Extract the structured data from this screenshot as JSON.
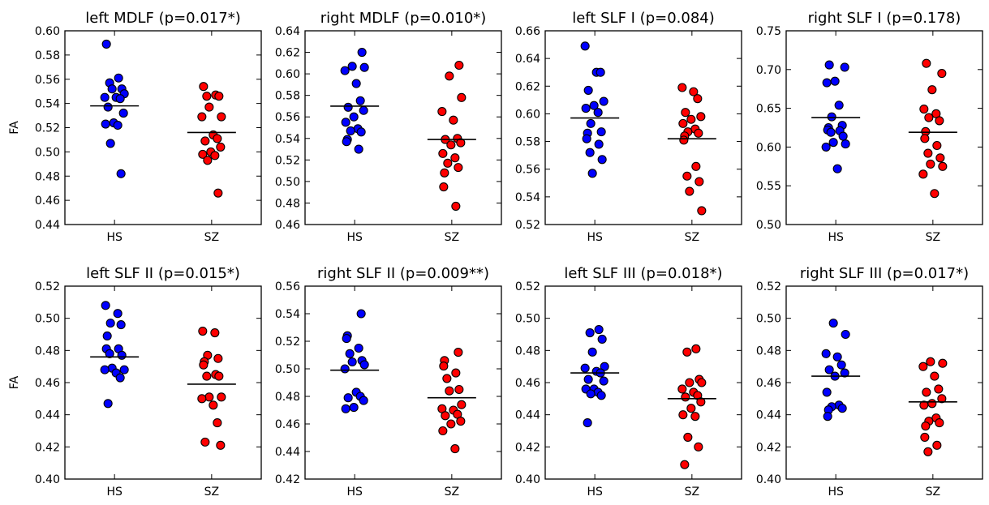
{
  "figure": {
    "ylabel_top": "FA",
    "ylabel_bottom": "FA"
  },
  "style": {
    "hs_color": "#0000ff",
    "sz_color": "#ff0000",
    "edge_color": "#000000",
    "mean_line_color": "#000000",
    "background": "#ffffff"
  },
  "chart_data": [
    {
      "type": "scatter",
      "title": "left MDLF (p=0.017*)",
      "ylabel": "FA",
      "categories": [
        "HS",
        "SZ"
      ],
      "ylim": [
        0.44,
        0.6
      ],
      "yticks": [
        "0.44",
        "0.46",
        "0.48",
        "0.50",
        "0.52",
        "0.54",
        "0.56",
        "0.58",
        "0.60"
      ],
      "grid": false,
      "legend": "none",
      "means": [
        0.538,
        0.516
      ],
      "series": [
        {
          "category": "HS",
          "values": [
            0.589,
            0.561,
            0.557,
            0.552,
            0.552,
            0.548,
            0.545,
            0.545,
            0.544,
            0.537,
            0.532,
            0.524,
            0.523,
            0.522,
            0.507,
            0.482
          ]
        },
        {
          "category": "SZ",
          "values": [
            0.554,
            0.547,
            0.546,
            0.546,
            0.537,
            0.529,
            0.529,
            0.514,
            0.511,
            0.509,
            0.504,
            0.5,
            0.498,
            0.497,
            0.493,
            0.466
          ]
        }
      ]
    },
    {
      "type": "scatter",
      "title": "right MDLF (p=0.010*)",
      "ylabel": "",
      "categories": [
        "HS",
        "SZ"
      ],
      "ylim": [
        0.46,
        0.64
      ],
      "yticks": [
        "0.46",
        "0.48",
        "0.50",
        "0.52",
        "0.54",
        "0.56",
        "0.58",
        "0.60",
        "0.62",
        "0.64"
      ],
      "grid": false,
      "legend": "none",
      "means": [
        0.57,
        0.539
      ],
      "series": [
        {
          "category": "HS",
          "values": [
            0.62,
            0.607,
            0.606,
            0.603,
            0.591,
            0.575,
            0.569,
            0.566,
            0.56,
            0.555,
            0.549,
            0.547,
            0.546,
            0.539,
            0.537,
            0.53
          ]
        },
        {
          "category": "SZ",
          "values": [
            0.608,
            0.598,
            0.578,
            0.565,
            0.557,
            0.54,
            0.539,
            0.536,
            0.534,
            0.526,
            0.522,
            0.517,
            0.513,
            0.508,
            0.495,
            0.477
          ]
        }
      ]
    },
    {
      "type": "scatter",
      "title": "left SLF I (p=0.084)",
      "ylabel": "",
      "categories": [
        "HS",
        "SZ"
      ],
      "ylim": [
        0.52,
        0.66
      ],
      "yticks": [
        "0.52",
        "0.54",
        "0.56",
        "0.58",
        "0.60",
        "0.62",
        "0.64",
        "0.66"
      ],
      "grid": false,
      "legend": "none",
      "means": [
        0.597,
        0.582
      ],
      "series": [
        {
          "category": "HS",
          "values": [
            0.649,
            0.63,
            0.63,
            0.617,
            0.609,
            0.606,
            0.604,
            0.601,
            0.593,
            0.587,
            0.586,
            0.582,
            0.578,
            0.572,
            0.567,
            0.557
          ]
        },
        {
          "category": "SZ",
          "values": [
            0.619,
            0.616,
            0.611,
            0.601,
            0.598,
            0.596,
            0.593,
            0.589,
            0.587,
            0.586,
            0.584,
            0.581,
            0.562,
            0.555,
            0.551,
            0.544,
            0.53
          ]
        }
      ]
    },
    {
      "type": "scatter",
      "title": "right SLF I (p=0.178)",
      "ylabel": "",
      "categories": [
        "HS",
        "SZ"
      ],
      "ylim": [
        0.5,
        0.75
      ],
      "yticks": [
        "0.50",
        "0.55",
        "0.60",
        "0.65",
        "0.70",
        "0.75"
      ],
      "grid": false,
      "legend": "none",
      "means": [
        0.638,
        0.619
      ],
      "series": [
        {
          "category": "HS",
          "values": [
            0.706,
            0.703,
            0.685,
            0.683,
            0.654,
            0.639,
            0.628,
            0.625,
            0.622,
            0.621,
            0.619,
            0.614,
            0.606,
            0.604,
            0.6,
            0.572
          ]
        },
        {
          "category": "SZ",
          "values": [
            0.708,
            0.695,
            0.674,
            0.649,
            0.643,
            0.638,
            0.634,
            0.62,
            0.611,
            0.602,
            0.592,
            0.586,
            0.578,
            0.575,
            0.565,
            0.54
          ]
        }
      ]
    },
    {
      "type": "scatter",
      "title": "left SLF II (p=0.015*)",
      "ylabel": "FA",
      "categories": [
        "HS",
        "SZ"
      ],
      "ylim": [
        0.4,
        0.52
      ],
      "yticks": [
        "0.40",
        "0.42",
        "0.44",
        "0.46",
        "0.48",
        "0.50",
        "0.52"
      ],
      "grid": false,
      "legend": "none",
      "means": [
        0.476,
        0.459
      ],
      "series": [
        {
          "category": "HS",
          "values": [
            0.508,
            0.503,
            0.497,
            0.496,
            0.489,
            0.481,
            0.481,
            0.478,
            0.477,
            0.469,
            0.468,
            0.468,
            0.466,
            0.463,
            0.447
          ]
        },
        {
          "category": "SZ",
          "values": [
            0.492,
            0.491,
            0.477,
            0.475,
            0.473,
            0.471,
            0.465,
            0.464,
            0.464,
            0.451,
            0.451,
            0.45,
            0.446,
            0.435,
            0.423,
            0.421
          ]
        }
      ]
    },
    {
      "type": "scatter",
      "title": "right SLF II (p=0.009**)",
      "ylabel": "",
      "categories": [
        "HS",
        "SZ"
      ],
      "ylim": [
        0.42,
        0.56
      ],
      "yticks": [
        "0.42",
        "0.44",
        "0.46",
        "0.48",
        "0.50",
        "0.52",
        "0.54",
        "0.56"
      ],
      "grid": false,
      "legend": "none",
      "means": [
        0.499,
        0.479
      ],
      "series": [
        {
          "category": "HS",
          "values": [
            0.54,
            0.524,
            0.522,
            0.515,
            0.511,
            0.506,
            0.505,
            0.503,
            0.5,
            0.483,
            0.48,
            0.479,
            0.477,
            0.472,
            0.471
          ]
        },
        {
          "category": "SZ",
          "values": [
            0.512,
            0.506,
            0.502,
            0.497,
            0.493,
            0.485,
            0.484,
            0.474,
            0.471,
            0.47,
            0.467,
            0.466,
            0.462,
            0.46,
            0.455,
            0.442
          ]
        }
      ]
    },
    {
      "type": "scatter",
      "title": "left SLF III (p=0.018*)",
      "ylabel": "",
      "categories": [
        "HS",
        "SZ"
      ],
      "ylim": [
        0.4,
        0.52
      ],
      "yticks": [
        "0.40",
        "0.42",
        "0.44",
        "0.46",
        "0.48",
        "0.50",
        "0.52"
      ],
      "grid": false,
      "legend": "none",
      "means": [
        0.466,
        0.45
      ],
      "series": [
        {
          "category": "HS",
          "values": [
            0.493,
            0.491,
            0.487,
            0.479,
            0.47,
            0.469,
            0.467,
            0.466,
            0.462,
            0.461,
            0.456,
            0.456,
            0.454,
            0.453,
            0.452,
            0.435
          ]
        },
        {
          "category": "SZ",
          "values": [
            0.481,
            0.479,
            0.462,
            0.46,
            0.46,
            0.456,
            0.454,
            0.452,
            0.451,
            0.448,
            0.444,
            0.44,
            0.439,
            0.426,
            0.42,
            0.409
          ]
        }
      ]
    },
    {
      "type": "scatter",
      "title": "right SLF III (p=0.017*)",
      "ylabel": "",
      "categories": [
        "HS",
        "SZ"
      ],
      "ylim": [
        0.4,
        0.52
      ],
      "yticks": [
        "0.40",
        "0.42",
        "0.44",
        "0.46",
        "0.48",
        "0.50",
        "0.52"
      ],
      "grid": false,
      "legend": "none",
      "means": [
        0.464,
        0.448
      ],
      "series": [
        {
          "category": "HS",
          "values": [
            0.497,
            0.49,
            0.478,
            0.476,
            0.471,
            0.468,
            0.466,
            0.464,
            0.454,
            0.446,
            0.445,
            0.444,
            0.443,
            0.439
          ]
        },
        {
          "category": "SZ",
          "values": [
            0.473,
            0.472,
            0.47,
            0.464,
            0.456,
            0.454,
            0.45,
            0.447,
            0.446,
            0.438,
            0.436,
            0.435,
            0.433,
            0.426,
            0.421,
            0.417
          ]
        }
      ]
    }
  ]
}
